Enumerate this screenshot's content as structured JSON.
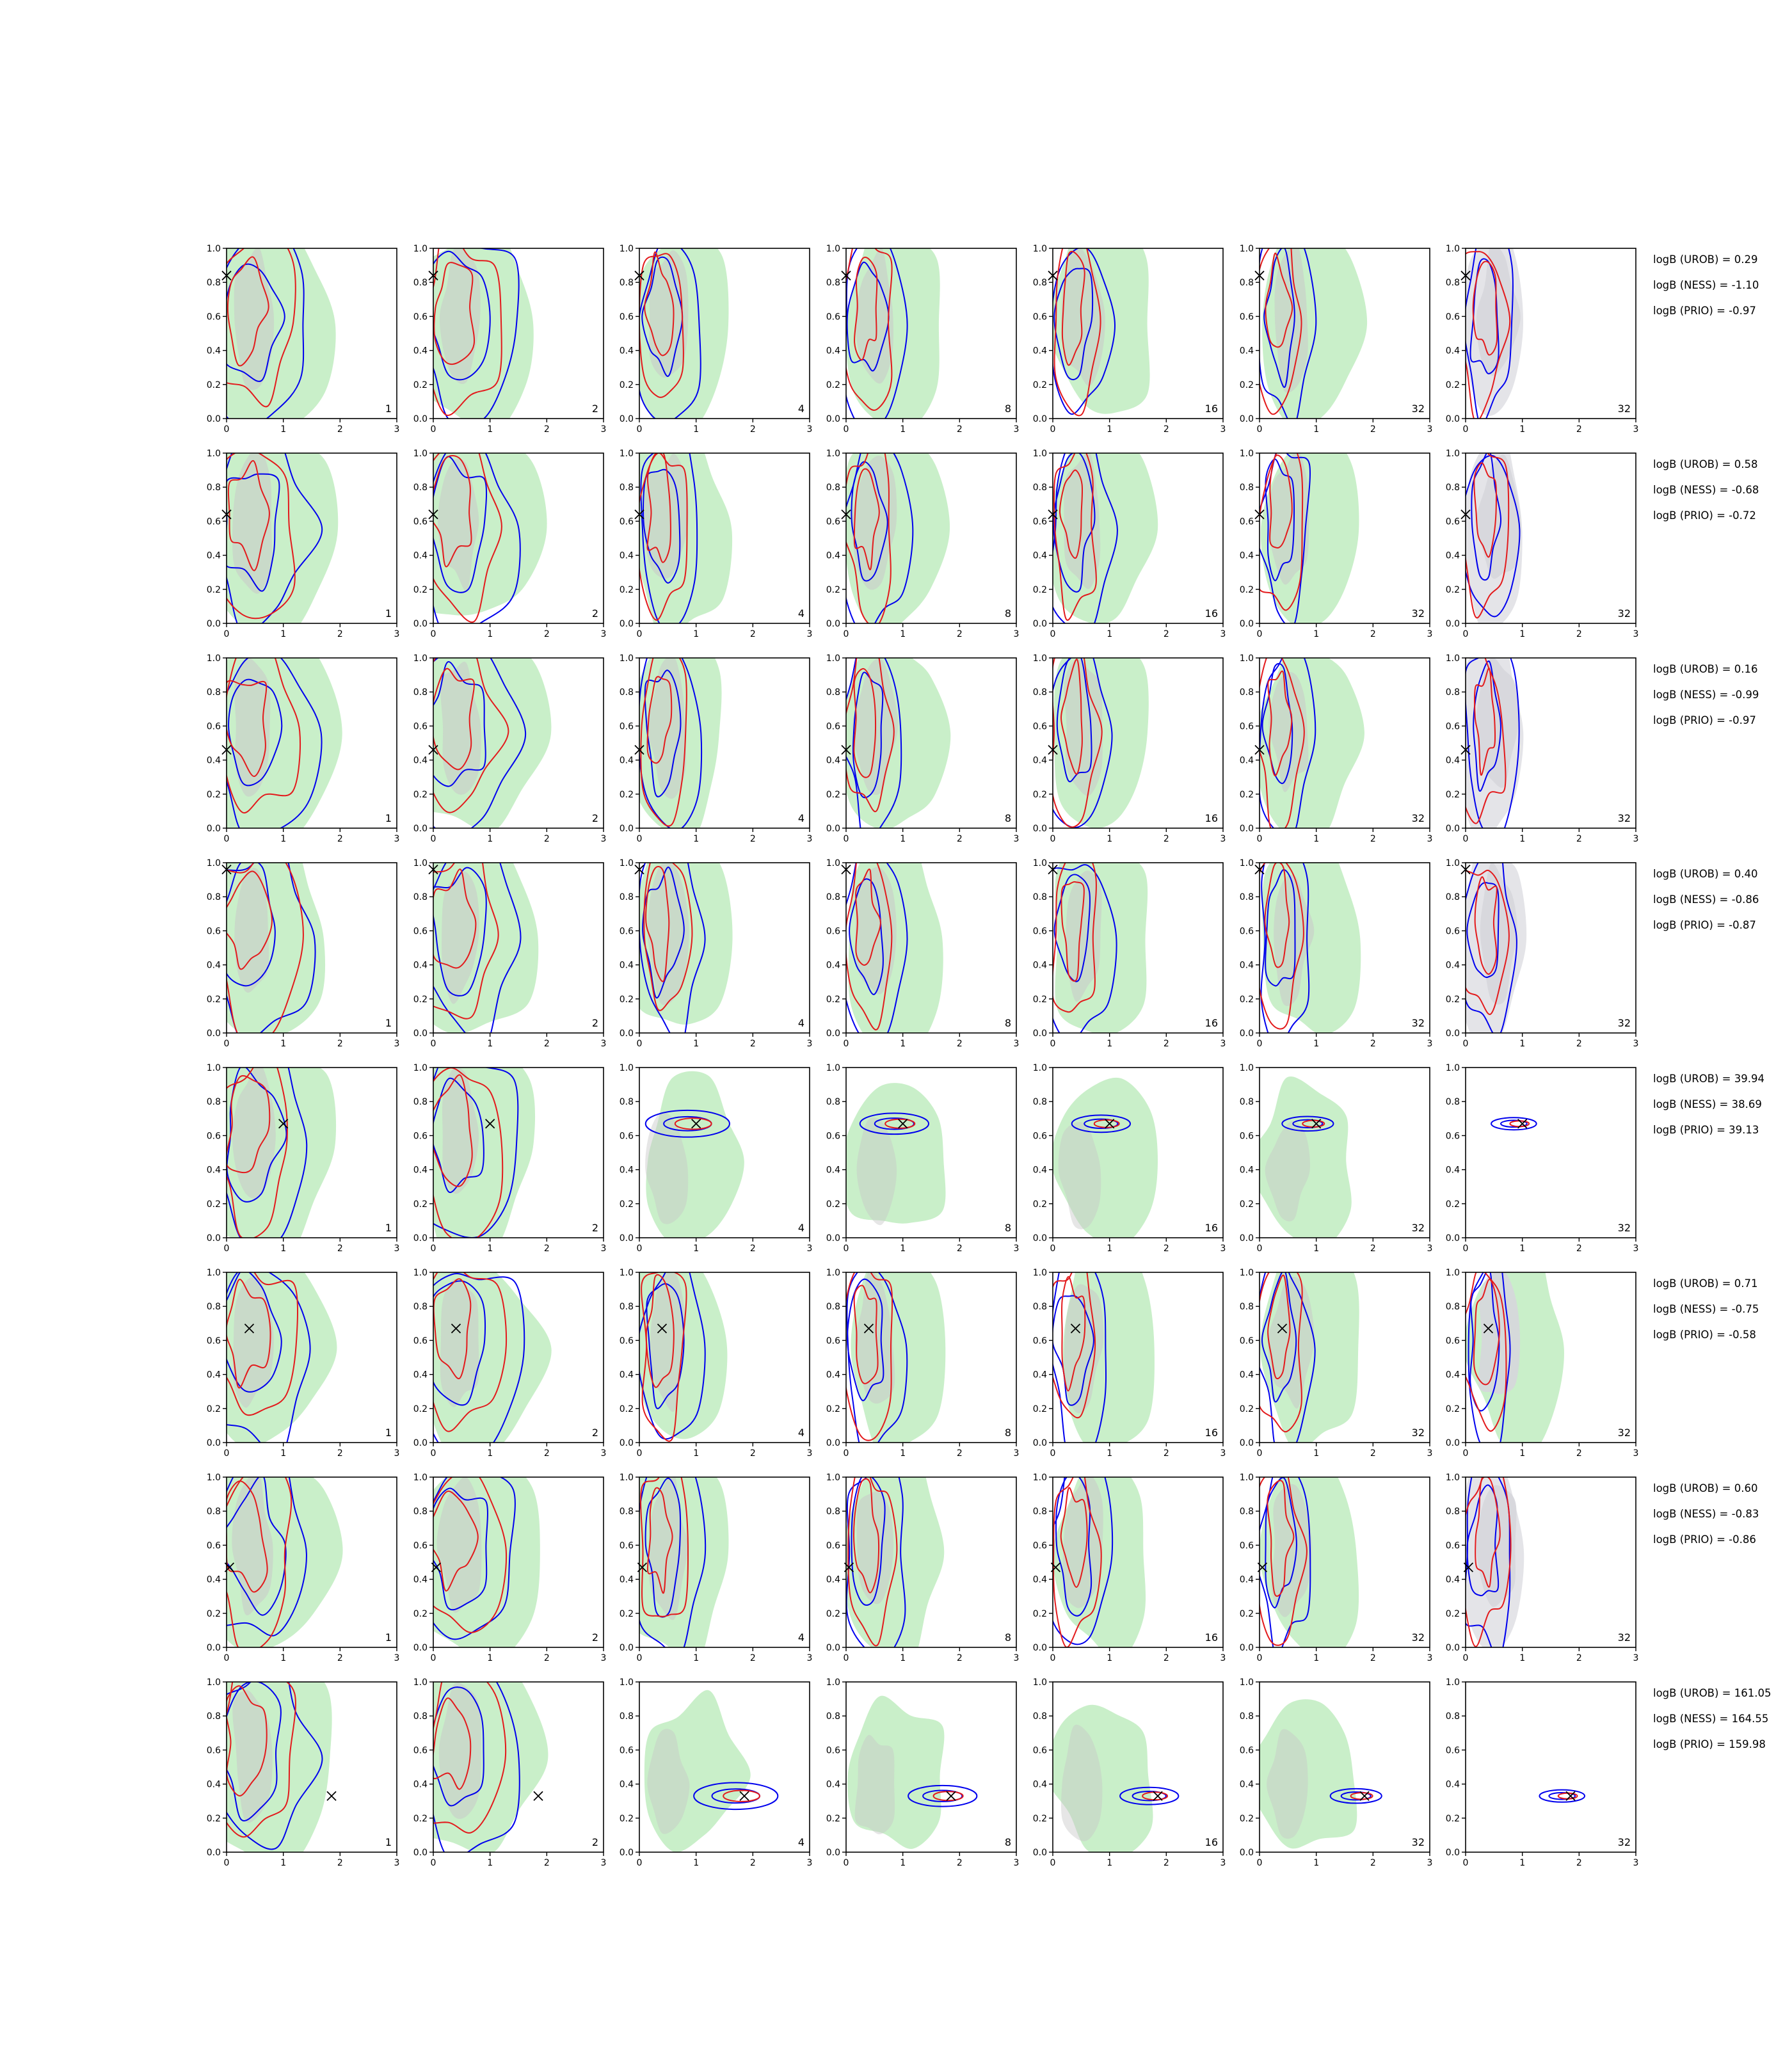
{
  "chart_data": {
    "type": "contour-grid",
    "rows": 8,
    "cols": 7,
    "xlim": [
      0,
      3
    ],
    "ylim": [
      0,
      1
    ],
    "xticks": [
      "0",
      "1",
      "2",
      "3"
    ],
    "yticks": [
      "0.0",
      "0.2",
      "0.4",
      "0.6",
      "0.8",
      "1.0"
    ],
    "column_labels": [
      "1",
      "2",
      "4",
      "8",
      "16",
      "32",
      "32"
    ],
    "colors": {
      "fill_green": "#c9efc9",
      "fill_gray": "#c8c8c8",
      "fill_lightgray": "#e4e4e8",
      "contour_red": "#e31a1c",
      "contour_blue": "#0000ee",
      "marker": "#000000"
    },
    "truth": [
      {
        "x": 0.0,
        "y": 0.84
      },
      {
        "x": 0.0,
        "y": 0.64
      },
      {
        "x": 0.0,
        "y": 0.46
      },
      {
        "x": 0.0,
        "y": 0.96
      },
      {
        "x": 1.0,
        "y": 0.67
      },
      {
        "x": 0.4,
        "y": 0.67
      },
      {
        "x": 0.05,
        "y": 0.47
      },
      {
        "x": 1.85,
        "y": 0.33
      }
    ],
    "logB": [
      [
        "logB (UROB) = 0.29",
        "logB (NESS) = -1.10",
        "logB (PRIO) = -0.97"
      ],
      [
        "logB (UROB) = 0.58",
        "logB (NESS) = -0.68",
        "logB (PRIO) = -0.72"
      ],
      [
        "logB (UROB) = 0.16",
        "logB (NESS) = -0.99",
        "logB (PRIO) = -0.97"
      ],
      [
        "logB (UROB) = 0.40",
        "logB (NESS) = -0.86",
        "logB (PRIO) = -0.87"
      ],
      [
        "logB (UROB) = 39.94",
        "logB (NESS) = 38.69",
        "logB (PRIO) = 39.13"
      ],
      [
        "logB (UROB) = 0.71",
        "logB (NESS) = -0.75",
        "logB (PRIO) = -0.58"
      ],
      [
        "logB (UROB) = 0.60",
        "logB (NESS) = -0.83",
        "logB (PRIO) = -0.86"
      ],
      [
        "logB (UROB) = 161.05",
        "logB (NESS) = 164.55",
        "logB (PRIO) = 159.98"
      ]
    ]
  }
}
